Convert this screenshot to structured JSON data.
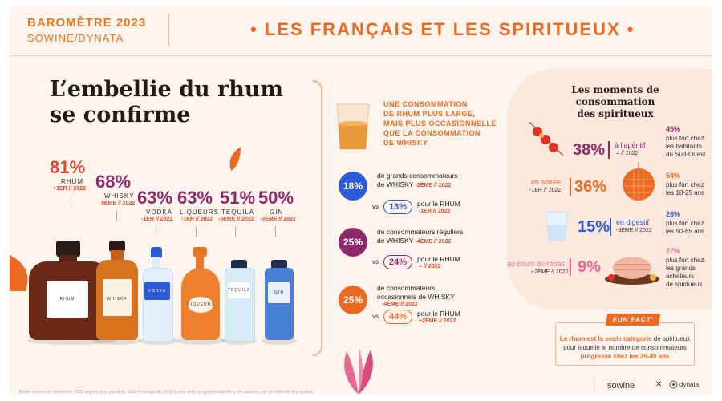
{
  "header": {
    "barometer": "BAROMÈTRE 2023",
    "brands": "SOWINE/DYNATA",
    "title": "•  LES FRANÇAIS ET LES SPIRITUEUX  •"
  },
  "headline": {
    "line1": "L’embellie du rhum",
    "line2": "se confirme"
  },
  "spirits": [
    {
      "pct": "81%",
      "name": "RHUM",
      "rank": "+1ER // 2022"
    },
    {
      "pct": "68%",
      "name": "WHISKY",
      "rank": "9ÈME // 2022"
    },
    {
      "pct": "63%",
      "name": "VODKA",
      "rank": "-1ER // 2022"
    },
    {
      "pct": "63%",
      "name": "LIQUEURS",
      "rank": "-1ER // 2022"
    },
    {
      "pct": "51%",
      "name": "TEQUILA",
      "rank": "-5ÈME // 2022"
    },
    {
      "pct": "50%",
      "name": "GIN",
      "rank": "-3ÈME // 2022"
    }
  ],
  "bottle_labels": {
    "rhum": "RHUM",
    "whisky": "WHISKY",
    "vodka": "VODKA",
    "liqueurs": "LIQUEURS",
    "tequila": "TEQUILA",
    "gin": "GIN"
  },
  "consumption": {
    "title_lines": [
      "UNE CONSOMMATION",
      "DE RHUM PLUS LARGE,",
      "MAIS PLUS OCCASIONNELLE",
      "QUE LA CONSOMMATION",
      "DE WHISKY"
    ],
    "stats": [
      {
        "pct": "18%",
        "line1": "de grands consommateurs",
        "line2": "de WHISKY",
        "rank": "-2ÈME // 2022",
        "vs": "vs",
        "rhum_pct": "13%",
        "rhum_label": "pour le RHUM",
        "rhum_rank": "-1ER // 2022"
      },
      {
        "pct": "25%",
        "line1": "de consommateurs réguliers",
        "line2": "de WHISKY",
        "rank": "-4ÈME // 2022",
        "vs": "vs",
        "rhum_pct": "24%",
        "rhum_label": "pour le RHUM",
        "rhum_rank": "= // 2022"
      },
      {
        "pct": "25%",
        "line1": "de consommateurs",
        "line2": "occasionnels de WHISKY",
        "rank": "-4ÈME // 2022",
        "vs": "vs",
        "rhum_pct": "44%",
        "rhum_label": "pour le RHUM",
        "rhum_rank": "+2ÈME // 2022"
      }
    ]
  },
  "moments": {
    "title_line1": "Les moments de consommation",
    "title_line2": "des spiritueux",
    "items": [
      {
        "pct": "38%",
        "label": "à l’apéritif",
        "rank": "= // 2022",
        "side_pct": "45%",
        "side_lines": [
          "plus fort chez",
          "les habitants",
          "du Sud-Ouest"
        ]
      },
      {
        "pct": "36%",
        "label": "en soirée",
        "rank": "-1ER // 2022",
        "side_pct": "54%",
        "side_lines": [
          "plus fort chez",
          "les 18-25 ans"
        ]
      },
      {
        "pct": "15%",
        "label": "en digestif",
        "rank": "-3ÈME // 2022",
        "side_pct": "26%",
        "side_lines": [
          "plus fort chez",
          "les 50-65 ans"
        ]
      },
      {
        "pct": "9%",
        "label": "au cours du repas",
        "rank": "+2ÈME // 2022",
        "side_pct": "27%",
        "side_lines": [
          "plus fort chez",
          "les grands",
          "acheteurs",
          "de spiritueux"
        ]
      }
    ]
  },
  "fun_fact": {
    "badge": "FUN FACT'",
    "part1": "Le rhum est la seule catégorie",
    "part2": " de spiritueux pour laquelle le nombre de consommateurs ",
    "part3": "progresse chez les 26-49 ans"
  },
  "footnote": "Étude menée en décembre 2022 auprès d’un panel de 1034 Français de 18 à 65 ans dont la représentativité a été assurée par la méthode des quotas.",
  "footer": {
    "sowine": "sowine",
    "cross": "✕",
    "dynata": "dynata"
  },
  "colors": {
    "orange": "#ea6a22",
    "plum": "#8e2a6b",
    "blue": "#2d5bd6",
    "background": "#fdf4ee"
  }
}
